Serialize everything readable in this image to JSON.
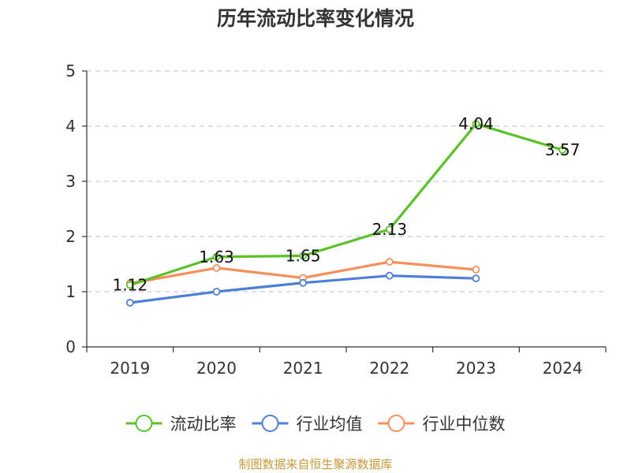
{
  "title": "历年流动比率变化情况",
  "source": "制图数据来自恒生聚源数据库",
  "chart_data": {
    "type": "line",
    "categories": [
      "2019",
      "2020",
      "2021",
      "2022",
      "2023",
      "2024"
    ],
    "ylim": [
      0,
      5
    ],
    "yticks": [
      0,
      1,
      2,
      3,
      4,
      5
    ],
    "grid": true,
    "legend_position": "bottom",
    "series": [
      {
        "name": "流动比率",
        "color": "#5ac227",
        "values": [
          1.12,
          1.63,
          1.65,
          2.13,
          4.04,
          3.57
        ],
        "labels": [
          "1.12",
          "1.63",
          "1.65",
          "2.13",
          "4.04",
          "3.57"
        ]
      },
      {
        "name": "行业均值",
        "color": "#4e7fd6",
        "values": [
          0.8,
          1.0,
          1.16,
          1.29,
          1.24,
          null
        ],
        "labels": []
      },
      {
        "name": "行业中位数",
        "color": "#f5905a",
        "values": [
          1.15,
          1.43,
          1.25,
          1.54,
          1.4,
          null
        ],
        "labels": []
      }
    ]
  }
}
